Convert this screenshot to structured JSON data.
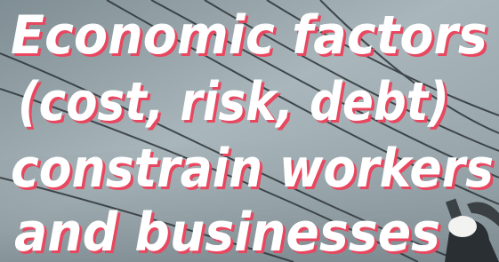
{
  "headline": {
    "lines": [
      "Economic factors",
      "(cost, risk, debt)",
      "constrain workers",
      "and businesses"
    ]
  }
}
